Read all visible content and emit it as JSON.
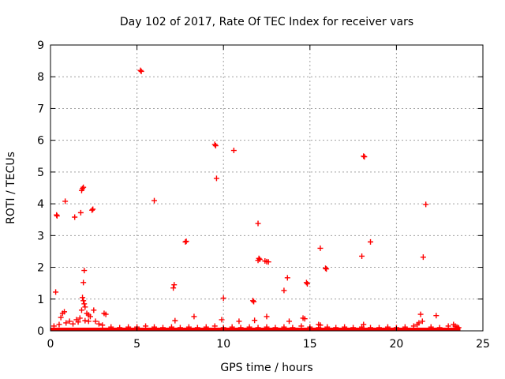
{
  "chart_data": {
    "type": "scatter",
    "title": "Day 102 of 2017, Rate Of TEC Index for receiver vars",
    "xlabel": "GPS time / hours",
    "ylabel": "ROTI / TECUs",
    "xlim": [
      0,
      25
    ],
    "ylim": [
      0,
      9
    ],
    "xticks": [
      "0",
      "5",
      "10",
      "15",
      "20",
      "25"
    ],
    "yticks": [
      "0",
      "1",
      "2",
      "3",
      "4",
      "5",
      "6",
      "7",
      "8",
      "9"
    ],
    "grid": true,
    "marker": "+",
    "color": "#ff0000",
    "band": {
      "x_start": 0.0,
      "x_end": 23.7,
      "y_max": 0.1,
      "note": "dense cluster of near-zero values across the whole day"
    },
    "points": [
      [
        0.3,
        1.22
      ],
      [
        0.35,
        3.65
      ],
      [
        0.38,
        3.62
      ],
      [
        0.6,
        0.42
      ],
      [
        0.7,
        0.55
      ],
      [
        0.8,
        0.6
      ],
      [
        0.85,
        4.08
      ],
      [
        1.4,
        3.58
      ],
      [
        1.75,
        3.72
      ],
      [
        1.8,
        4.42
      ],
      [
        1.85,
        4.48
      ],
      [
        1.9,
        4.52
      ],
      [
        1.95,
        1.9
      ],
      [
        1.9,
        1.52
      ],
      [
        1.85,
        1.05
      ],
      [
        1.9,
        0.95
      ],
      [
        1.95,
        0.85
      ],
      [
        2.0,
        0.75
      ],
      [
        1.8,
        0.65
      ],
      [
        2.1,
        0.55
      ],
      [
        2.2,
        0.5
      ],
      [
        2.3,
        0.45
      ],
      [
        2.4,
        3.8
      ],
      [
        2.45,
        3.83
      ],
      [
        2.5,
        0.65
      ],
      [
        3.1,
        0.55
      ],
      [
        3.2,
        0.52
      ],
      [
        5.2,
        8.2
      ],
      [
        5.25,
        8.17
      ],
      [
        6.0,
        4.1
      ],
      [
        7.1,
        1.35
      ],
      [
        7.15,
        1.45
      ],
      [
        7.2,
        0.32
      ],
      [
        7.8,
        2.8
      ],
      [
        7.85,
        2.82
      ],
      [
        8.3,
        0.45
      ],
      [
        9.5,
        5.87
      ],
      [
        9.55,
        5.83
      ],
      [
        9.6,
        4.8
      ],
      [
        10.0,
        1.03
      ],
      [
        9.9,
        0.35
      ],
      [
        10.6,
        5.68
      ],
      [
        10.9,
        0.3
      ],
      [
        11.7,
        0.95
      ],
      [
        11.75,
        0.92
      ],
      [
        11.8,
        0.33
      ],
      [
        12.0,
        3.38
      ],
      [
        12.05,
        2.28
      ],
      [
        12.0,
        2.22
      ],
      [
        12.1,
        2.25
      ],
      [
        12.4,
        2.2
      ],
      [
        12.5,
        2.18
      ],
      [
        12.6,
        2.17
      ],
      [
        12.5,
        0.45
      ],
      [
        13.5,
        1.27
      ],
      [
        13.7,
        1.67
      ],
      [
        13.8,
        0.3
      ],
      [
        14.6,
        0.4
      ],
      [
        14.7,
        0.38
      ],
      [
        14.8,
        1.52
      ],
      [
        14.85,
        1.48
      ],
      [
        15.6,
        2.6
      ],
      [
        15.9,
        1.97
      ],
      [
        15.95,
        1.95
      ],
      [
        15.5,
        0.2
      ],
      [
        15.6,
        0.18
      ],
      [
        18.0,
        2.35
      ],
      [
        18.1,
        5.5
      ],
      [
        18.15,
        5.48
      ],
      [
        18.1,
        0.2
      ],
      [
        18.5,
        2.8
      ],
      [
        21.4,
        0.52
      ],
      [
        21.5,
        0.3
      ],
      [
        21.55,
        2.32
      ],
      [
        21.7,
        3.98
      ],
      [
        22.3,
        0.48
      ],
      [
        23.3,
        0.2
      ],
      [
        23.4,
        0.15
      ]
    ],
    "low_points": [
      [
        0.2,
        0.15
      ],
      [
        0.5,
        0.2
      ],
      [
        0.9,
        0.25
      ],
      [
        1.1,
        0.3
      ],
      [
        1.3,
        0.22
      ],
      [
        1.5,
        0.35
      ],
      [
        1.6,
        0.28
      ],
      [
        1.7,
        0.4
      ],
      [
        2.0,
        0.32
      ],
      [
        2.2,
        0.3
      ],
      [
        2.6,
        0.3
      ],
      [
        2.8,
        0.22
      ],
      [
        3.0,
        0.18
      ],
      [
        3.5,
        0.12
      ],
      [
        4.0,
        0.1
      ],
      [
        4.5,
        0.12
      ],
      [
        5.0,
        0.12
      ],
      [
        5.5,
        0.15
      ],
      [
        6.0,
        0.12
      ],
      [
        6.5,
        0.1
      ],
      [
        7.0,
        0.12
      ],
      [
        7.5,
        0.1
      ],
      [
        8.0,
        0.12
      ],
      [
        8.5,
        0.1
      ],
      [
        9.0,
        0.12
      ],
      [
        9.5,
        0.15
      ],
      [
        10.0,
        0.1
      ],
      [
        10.5,
        0.12
      ],
      [
        11.0,
        0.1
      ],
      [
        11.5,
        0.12
      ],
      [
        12.0,
        0.1
      ],
      [
        12.5,
        0.12
      ],
      [
        13.0,
        0.1
      ],
      [
        13.5,
        0.12
      ],
      [
        14.0,
        0.1
      ],
      [
        14.5,
        0.15
      ],
      [
        15.0,
        0.12
      ],
      [
        15.5,
        0.1
      ],
      [
        16.0,
        0.12
      ],
      [
        16.5,
        0.1
      ],
      [
        17.0,
        0.12
      ],
      [
        17.5,
        0.1
      ],
      [
        18.0,
        0.12
      ],
      [
        18.5,
        0.1
      ],
      [
        19.0,
        0.1
      ],
      [
        19.5,
        0.12
      ],
      [
        20.0,
        0.1
      ],
      [
        20.5,
        0.12
      ],
      [
        21.0,
        0.15
      ],
      [
        21.2,
        0.2
      ],
      [
        21.3,
        0.25
      ],
      [
        22.0,
        0.12
      ],
      [
        22.5,
        0.1
      ],
      [
        23.0,
        0.15
      ],
      [
        23.5,
        0.12
      ],
      [
        23.6,
        0.1
      ]
    ]
  }
}
